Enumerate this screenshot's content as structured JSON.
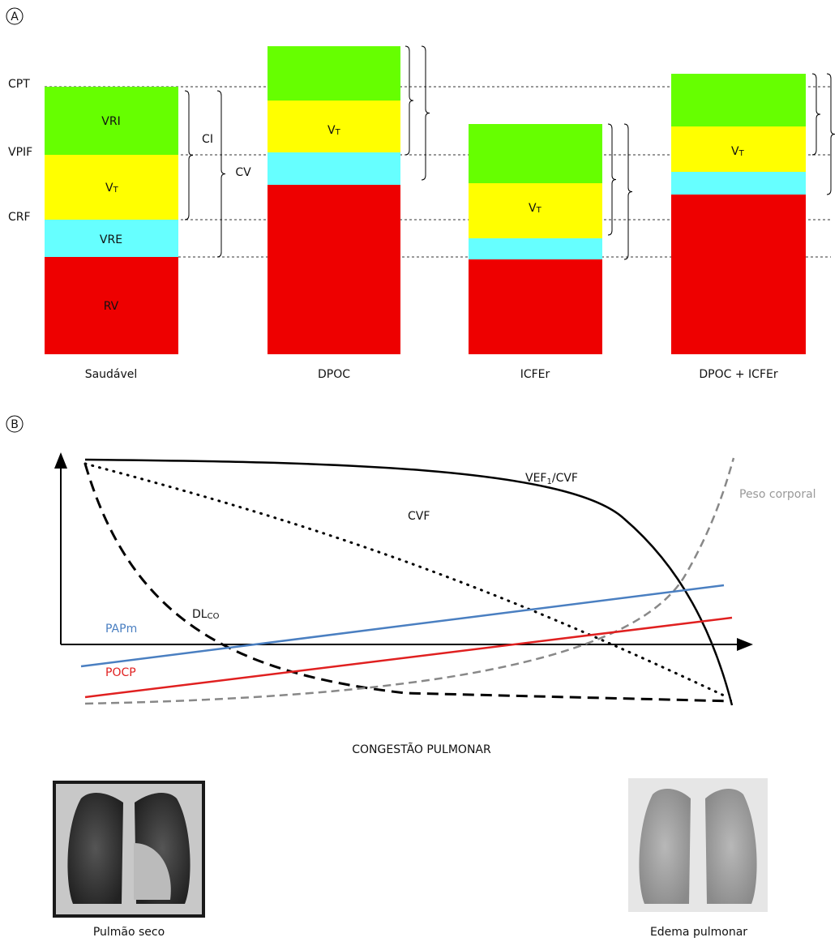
{
  "panel_a": {
    "label": "A",
    "levels": [
      "CPT",
      "VPIF",
      "CRF"
    ],
    "brackets": [
      "CI",
      "CV"
    ],
    "vt": {
      "main": "V",
      "sub": "T"
    },
    "healthy_segments": [
      "VRI",
      "VRE",
      "RV"
    ],
    "columns": [
      "Saudável",
      "DPOC",
      "ICFEr",
      "DPOC + ICFEr"
    ]
  },
  "panel_b": {
    "label": "B",
    "fev1_fvc": {
      "main": "VEF",
      "sub": "1",
      "rest": "/CVF"
    },
    "fvc": "CVF",
    "body_weight": "Peso corporal",
    "dlco": {
      "main": "DL",
      "sub": "CO"
    },
    "mpap": "PAPm",
    "pcwp": "POCP",
    "x_axis_label": "CONGESTÃO PULMONAR",
    "left_image_caption": "Pulmão seco",
    "right_image_caption": "Edema pulmonar"
  }
}
